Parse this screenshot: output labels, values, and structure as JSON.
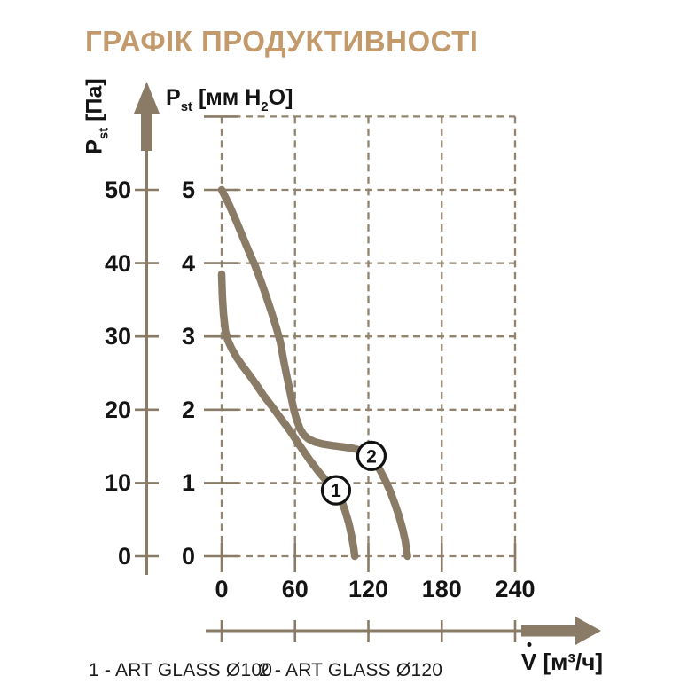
{
  "title": "ГРАФІК ПРОДУКТИВНОСТІ",
  "colors": {
    "accent_tan": "#C29A6B",
    "line_brown": "#8A7B66",
    "grid_brown": "#92836E",
    "text_black": "#141414",
    "marker_fill": "#ffffff",
    "marker_stroke": "#111111"
  },
  "axes": {
    "pressure_pa_label": {
      "symbol": "P",
      "sub": "st",
      "unit": " [Па]"
    },
    "pressure_mm_label": {
      "symbol": "P",
      "sub": "st",
      "unit_pre": " [мм H",
      "unit_sub": "2",
      "unit_post": "O]"
    },
    "flow_label": {
      "text": "V̇ [м³/ч]",
      "base": "V",
      "unit": " [м³/ч]"
    }
  },
  "legend": {
    "item1": "1 - ART GLASS Ø100",
    "item2": "2 - ART GLASS Ø120"
  },
  "chart_data": {
    "type": "line",
    "title": "ГРАФІК ПРОДУКТИВНОСТІ",
    "xlabel": "V̇ [м³/ч]",
    "ylabel_left": "Pst [Па]",
    "ylabel_right": "Pst [мм H2O]",
    "xlim": [
      0,
      240
    ],
    "ylim_mm": [
      0,
      6
    ],
    "x_ticks": [
      0,
      60,
      120,
      180,
      240
    ],
    "y_ticks_pa": [
      50,
      40,
      30,
      20,
      10,
      0
    ],
    "y_ticks_mm": [
      5,
      4,
      3,
      2,
      1,
      0
    ],
    "grid": "dashed",
    "legend_position": "bottom",
    "series": [
      {
        "name": "ART GLASS Ø100",
        "marker_label": "1",
        "marker_at": [
          93.5,
          0.9
        ],
        "points": [
          [
            0,
            3.85
          ],
          [
            0.6,
            3.55
          ],
          [
            1.5,
            3.3
          ],
          [
            3,
            3.08
          ],
          [
            5,
            2.95
          ],
          [
            8,
            2.84
          ],
          [
            12,
            2.72
          ],
          [
            17,
            2.6
          ],
          [
            22,
            2.49
          ],
          [
            28,
            2.35
          ],
          [
            34,
            2.2
          ],
          [
            41,
            2.05
          ],
          [
            47,
            1.91
          ],
          [
            53,
            1.78
          ],
          [
            58,
            1.66
          ],
          [
            63,
            1.53
          ],
          [
            68,
            1.41
          ],
          [
            73,
            1.29
          ],
          [
            79,
            1.16
          ],
          [
            85,
            1.04
          ],
          [
            90,
            0.95
          ],
          [
            94,
            0.88
          ],
          [
            98,
            0.76
          ],
          [
            101,
            0.62
          ],
          [
            104,
            0.45
          ],
          [
            106,
            0.3
          ],
          [
            108,
            0.12
          ],
          [
            108.8,
            0
          ]
        ]
      },
      {
        "name": "ART GLASS Ø120",
        "marker_label": "2",
        "marker_at": [
          122.5,
          1.37
        ],
        "points": [
          [
            0,
            5.0
          ],
          [
            6,
            4.8
          ],
          [
            12,
            4.57
          ],
          [
            18,
            4.33
          ],
          [
            23,
            4.13
          ],
          [
            27,
            3.98
          ],
          [
            32,
            3.76
          ],
          [
            37,
            3.52
          ],
          [
            41,
            3.32
          ],
          [
            45,
            3.1
          ],
          [
            48,
            2.92
          ],
          [
            51,
            2.65
          ],
          [
            54,
            2.4
          ],
          [
            57,
            2.16
          ],
          [
            59,
            2.0
          ],
          [
            61,
            1.88
          ],
          [
            64,
            1.74
          ],
          [
            67,
            1.66
          ],
          [
            71,
            1.6
          ],
          [
            76,
            1.56
          ],
          [
            83,
            1.53
          ],
          [
            91,
            1.51
          ],
          [
            100,
            1.49
          ],
          [
            108,
            1.47
          ],
          [
            115,
            1.44
          ],
          [
            120,
            1.39
          ],
          [
            125,
            1.3
          ],
          [
            130,
            1.16
          ],
          [
            134,
            1.03
          ],
          [
            138,
            0.88
          ],
          [
            142,
            0.7
          ],
          [
            145,
            0.55
          ],
          [
            148,
            0.37
          ],
          [
            150,
            0.22
          ],
          [
            152,
            0
          ]
        ]
      }
    ]
  }
}
